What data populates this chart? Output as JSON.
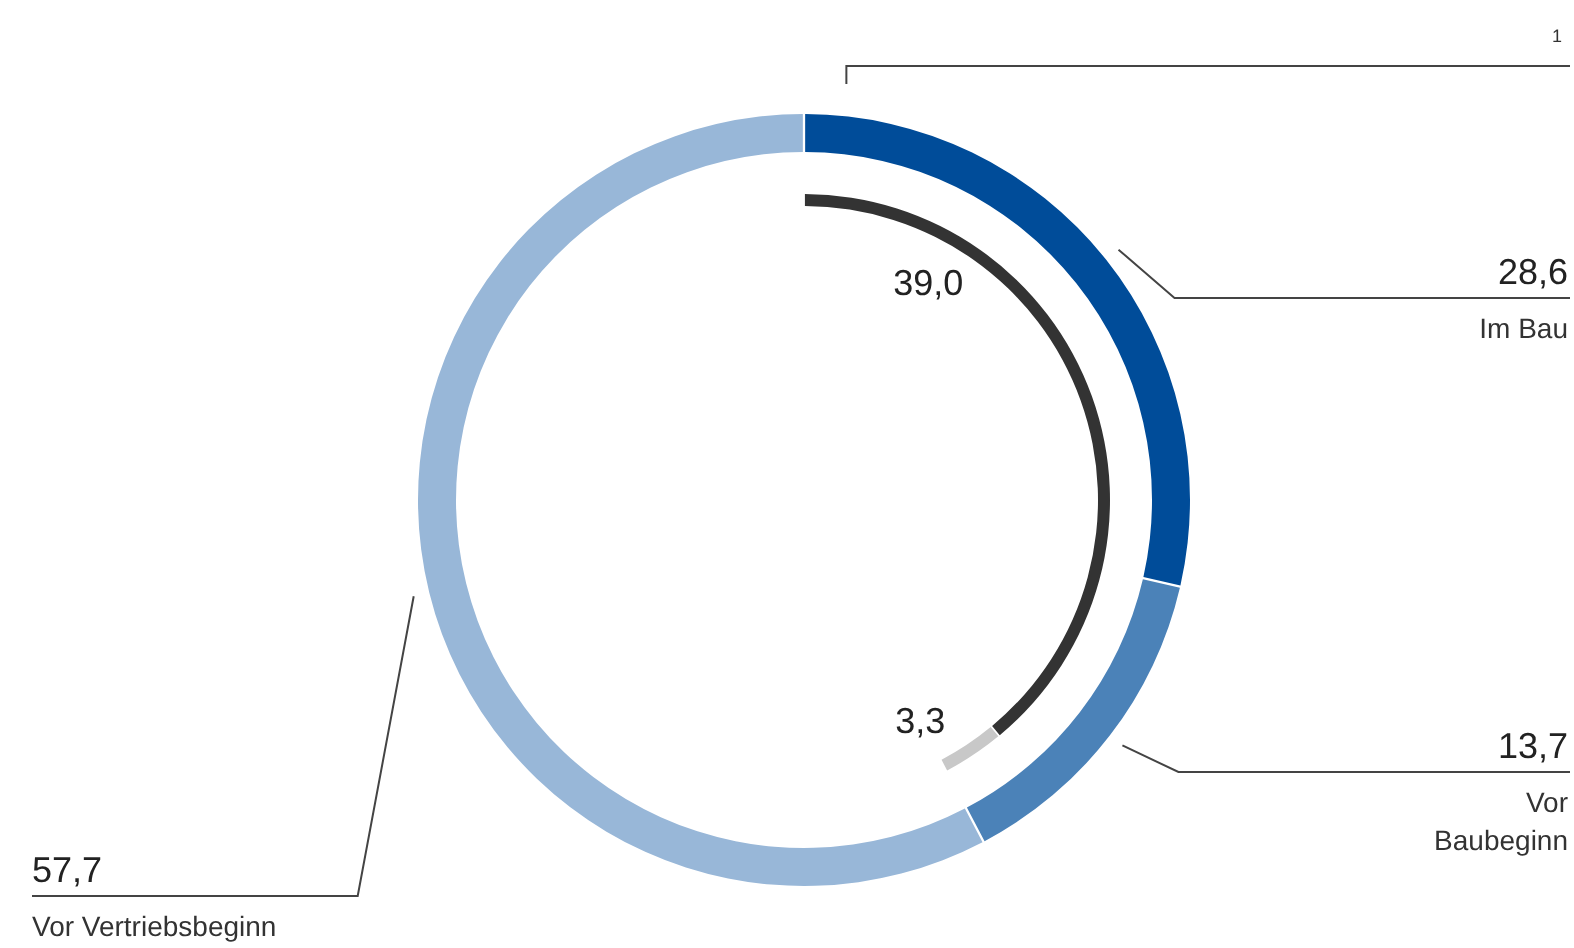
{
  "chart_data": {
    "type": "donut",
    "categories": [
      "Im Bau",
      "Vor Baubeginn",
      "Vor Vertriebsbeginn"
    ],
    "values": [
      28.6,
      13.7,
      57.7
    ],
    "colors": [
      "#004c99",
      "#4b82b8",
      "#98b7d8"
    ],
    "value_labels": [
      "28,6",
      "13,7",
      "57,7"
    ],
    "annotations": [
      "1"
    ],
    "series": [
      {
        "type": "donut",
        "values": [
          39.0,
          3.3,
          null
        ],
        "colors": [
          "#333333",
          "#c8c8c8",
          null
        ],
        "value_labels": [
          "39,0",
          "3,3",
          null
        ]
      }
    ]
  }
}
